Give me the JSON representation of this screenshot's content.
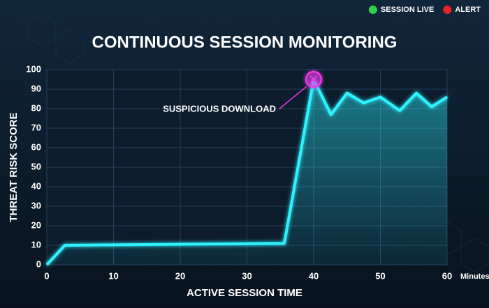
{
  "status": [
    {
      "label": "SESSION LIVE",
      "color": "#2fd04a"
    },
    {
      "label": "ALERT",
      "color": "#e52424"
    }
  ],
  "chart_data": {
    "type": "line",
    "title": "CONTINUOUS SESSION MONITORING",
    "x_label": "ACTIVE SESSION TIME",
    "x_unit": "Minutes",
    "y_label": "THREAT RISK SCORE",
    "x": [
      0,
      2.7,
      35.6,
      40,
      42.6,
      45,
      47.5,
      50,
      52.9,
      55.4,
      57.7,
      60
    ],
    "series": [
      {
        "name": "Threat risk score",
        "color": "#2ff3ff",
        "values": [
          0,
          10,
          11,
          95,
          77,
          88,
          83,
          86,
          79,
          88,
          81,
          86
        ]
      }
    ],
    "xlim": [
      0,
      60
    ],
    "xticks": [
      0,
      10,
      20,
      30,
      40,
      50,
      60
    ],
    "ylim": [
      0,
      100
    ],
    "yticks": [
      0,
      10,
      20,
      30,
      40,
      50,
      60,
      70,
      80,
      90,
      100
    ],
    "grid": true,
    "annotations": [
      {
        "text": "SUSPICIOUS DOWNLOAD",
        "x": 40,
        "y": 95,
        "color": "#e83ae8"
      }
    ]
  }
}
